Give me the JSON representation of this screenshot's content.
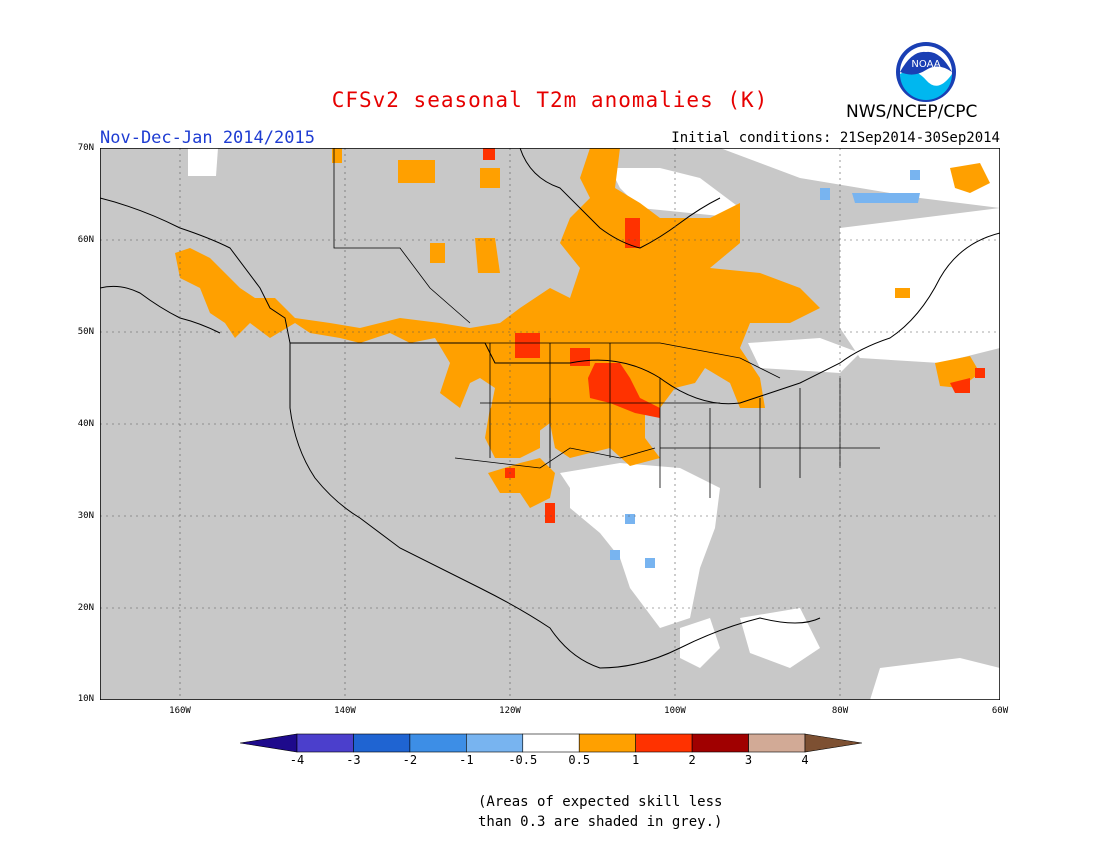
{
  "title": "CFSv2 seasonal T2m anomalies (K)",
  "agency": "NWS/NCEP/CPC",
  "logo_text": "NOAA",
  "period": "Nov-Dec-Jan 2014/2015",
  "initial_conditions": "Initial conditions: 21Sep2014-30Sep2014",
  "lat_labels": [
    "70N",
    "60N",
    "50N",
    "40N",
    "30N",
    "20N",
    "10N"
  ],
  "lon_labels": [
    "160W",
    "140W",
    "120W",
    "100W",
    "80W",
    "60W"
  ],
  "colorbar": {
    "labels": [
      "-4",
      "-3",
      "-2",
      "-1",
      "-0.5",
      "0.5",
      "1",
      "2",
      "3",
      "4"
    ],
    "colors": [
      "#1e0a8c",
      "#4b3fcc",
      "#1f64d2",
      "#3d8ee6",
      "#78b4f0",
      "#ffffff",
      "#ffa000",
      "#ff3200",
      "#a00000",
      "#d2aa96",
      "#7d5032"
    ]
  },
  "note_lines": [
    "(Areas of expected skill less",
    "than 0.3 are shaded in grey.)"
  ],
  "colors": {
    "title": "#e60000",
    "period": "#1e3cd2",
    "skill_mask": "#c8c8c8",
    "warm_05_1": "#ffa000",
    "warm_1_2": "#ff3200",
    "cool": "#78b4f0",
    "neutral": "#ffffff"
  }
}
